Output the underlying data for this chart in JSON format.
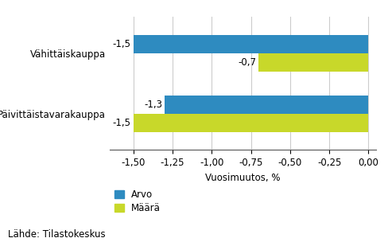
{
  "categories": [
    "Päivittäistavarakauppa",
    "Vähittäiskauppa"
  ],
  "arvo_values": [
    -1.3,
    -1.5
  ],
  "maara_values": [
    -1.5,
    -0.7
  ],
  "arvo_color": "#2E8BC0",
  "maara_color": "#C8D82A",
  "bar_height": 0.3,
  "xlim": [
    -1.65,
    0.05
  ],
  "xticks": [
    -1.5,
    -1.25,
    -1.0,
    -0.75,
    -0.5,
    -0.25,
    0.0
  ],
  "xlabel": "Vuosimuutos, %",
  "legend_labels": [
    "Arvo",
    "Määrä"
  ],
  "source_text": "Lähde: Tilastokeskus",
  "background_color": "#ffffff",
  "grid_color": "#cccccc",
  "bar_labels_arvo": [
    "-1,3",
    "-1,5"
  ],
  "bar_labels_maara": [
    "-1,5",
    "-0,7"
  ],
  "font_size": 8.5
}
